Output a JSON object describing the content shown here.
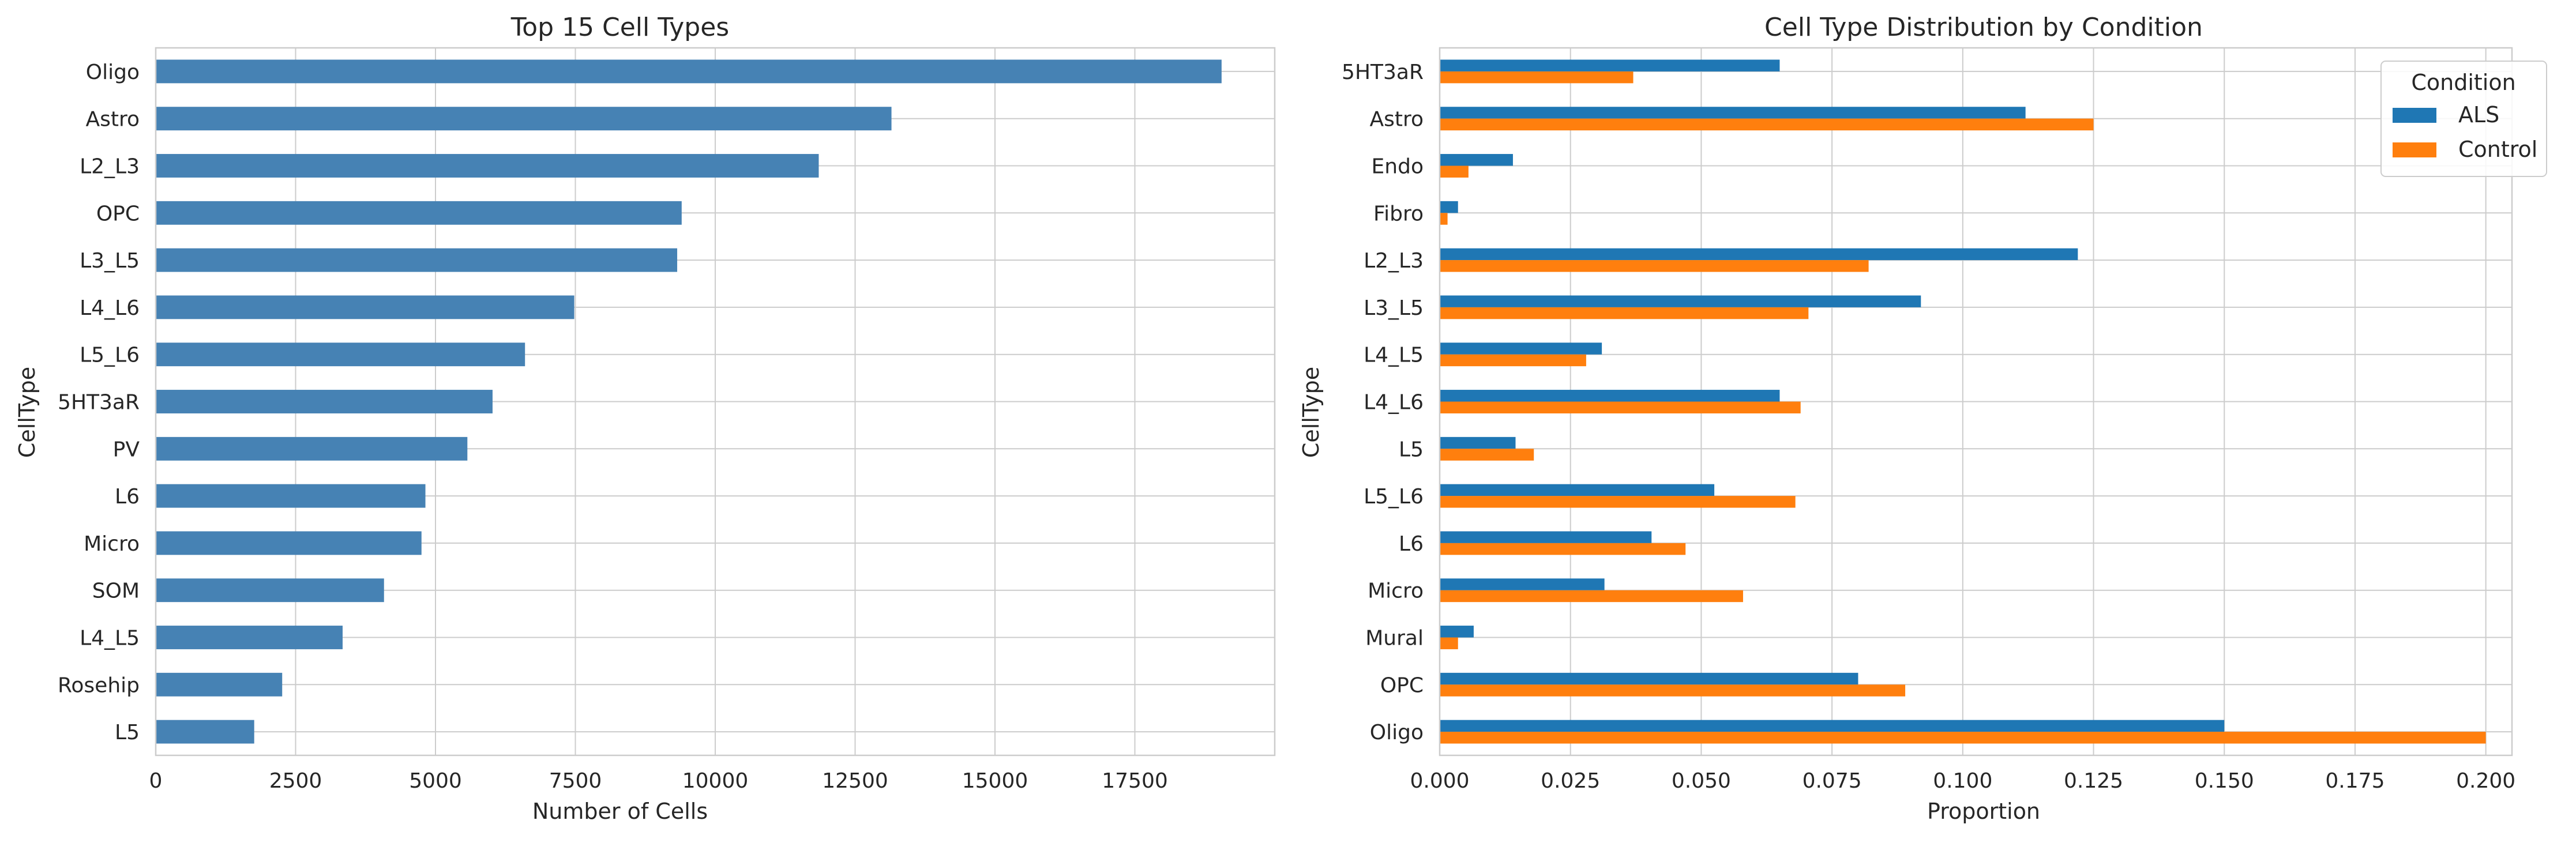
{
  "chart_data": [
    {
      "type": "bar",
      "orientation": "horizontal",
      "title": "Top 15 Cell Types",
      "xlabel": "Number of Cells",
      "ylabel": "CellType",
      "xlim": [
        0,
        20000
      ],
      "xticks": [
        0,
        2500,
        5000,
        7500,
        10000,
        12500,
        15000,
        17500
      ],
      "grid": true,
      "color": "#4682b4",
      "categories": [
        "Oligo",
        "Astro",
        "L2_L3",
        "OPC",
        "L3_L5",
        "L4_L6",
        "L5_L6",
        "5HT3aR",
        "PV",
        "L6",
        "Micro",
        "SOM",
        "L4_L5",
        "Rosehip",
        "L5"
      ],
      "values": [
        19050,
        13150,
        11850,
        9400,
        9320,
        7480,
        6600,
        6020,
        5570,
        4820,
        4750,
        4080,
        3340,
        2260,
        1760
      ]
    },
    {
      "type": "bar",
      "orientation": "horizontal",
      "title": "Cell Type Distribution by Condition",
      "xlabel": "Proportion",
      "ylabel": "CellType",
      "xlim": [
        0,
        0.205
      ],
      "xticks": [
        "0.000",
        "0.025",
        "0.050",
        "0.075",
        "0.100",
        "0.125",
        "0.150",
        "0.175",
        "0.200"
      ],
      "grid": true,
      "legend": {
        "title": "Condition",
        "position": "top-right"
      },
      "categories": [
        "5HT3aR",
        "Astro",
        "Endo",
        "Fibro",
        "L2_L3",
        "L3_L5",
        "L4_L5",
        "L4_L6",
        "L5",
        "L5_L6",
        "L6",
        "Micro",
        "Mural",
        "OPC",
        "Oligo"
      ],
      "series": [
        {
          "name": "ALS",
          "color": "#1f77b4",
          "values": [
            0.065,
            0.112,
            0.014,
            0.0035,
            0.122,
            0.092,
            0.031,
            0.065,
            0.0145,
            0.0525,
            0.0405,
            0.0315,
            0.0065,
            0.08,
            0.15
          ]
        },
        {
          "name": "Control",
          "color": "#ff7f0e",
          "values": [
            0.037,
            0.125,
            0.0055,
            0.0015,
            0.082,
            0.0705,
            0.028,
            0.069,
            0.018,
            0.068,
            0.047,
            0.058,
            0.0035,
            0.089,
            0.2
          ]
        }
      ]
    }
  ]
}
